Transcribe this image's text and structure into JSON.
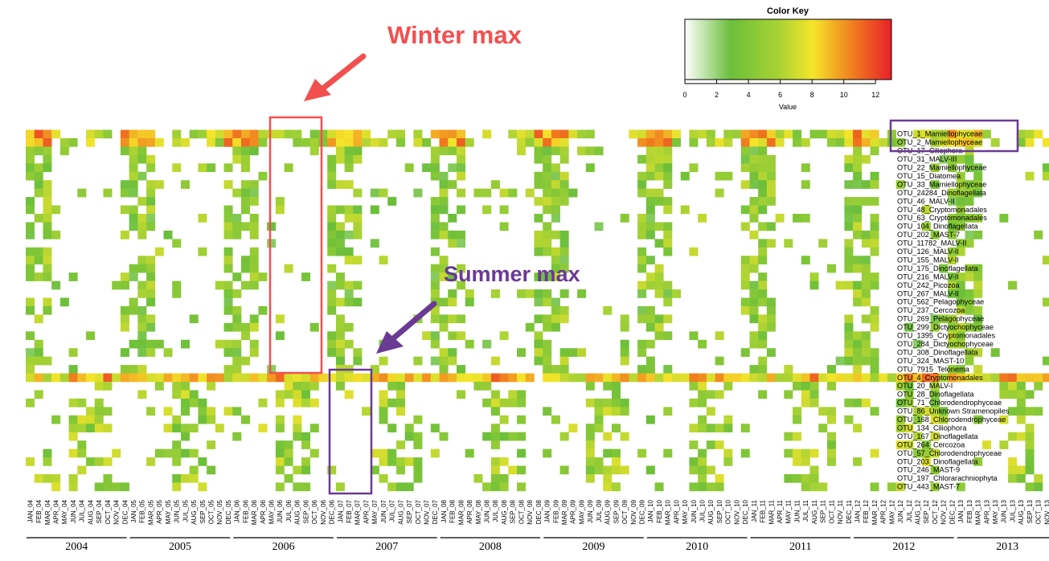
{
  "chart_data": {
    "type": "heatmap",
    "title": "",
    "xlabel": "",
    "ylabel": "",
    "months": [
      "JAN",
      "FEB",
      "MAR",
      "APR",
      "MAY",
      "JUN",
      "JUL",
      "AUG",
      "SEP",
      "OCT",
      "NOV",
      "DEC"
    ],
    "years": [
      "2004",
      "2005",
      "2006",
      "2007",
      "2008",
      "2009",
      "2010",
      "2011",
      "2012",
      "2013"
    ],
    "rows": [
      "OTU_1_Mamiellophyceae",
      "OTU_2_Mamiellophyceae",
      "OTU_17_Ciliophora",
      "OTU_31_MALV-III",
      "OTU_22_Mamiellophyceae",
      "OTU_15_Diatomea",
      "OTU_33_Mamiellophyceae",
      "OTU_24284_Dinoflagellata",
      "OTU_46_MALV-II",
      "OTU_48_Cryptomonadales",
      "OTU_63_Cryptomonadales",
      "OTU_104_Dinoflagellata",
      "OTU_202_MAST-7",
      "OTU_11782_MALV-II",
      "OTU_126_MALV-II",
      "OTU_155_MALV-II",
      "OTU_175_Dinoflagellata",
      "OTU_216_MALV-II",
      "OTU_242_Picozoa",
      "OTU_267_MALV-II",
      "OTU_562_Pelagophyceae",
      "OTU_237_Cercozoa",
      "OTU_269_Pelagophyceae",
      "OTU_299_Dictyochophyceae",
      "OTU_1395_Cryptomonadales",
      "OTU_284_Dictyochophyceae",
      "OTU_308_Dinoflagellata",
      "OTU_324_MAST-10",
      "OTU_7915_Telonema",
      "OTU_4_Cryptomonadales",
      "OTU_20_MALV-I",
      "OTU_28_Dinoflagellata",
      "OTU_71_Chlorodendrophyceae",
      "OTU_86_Unknown Stramenopiles",
      "OTU_168_Chlorodendrophyceae",
      "OTU_134_Ciliophora",
      "OTU_167_Dinoflagellata",
      "OTU_264_Cercozoa",
      "OTU_57_Chlorodendrophyceae",
      "OTU_203_Dinoflagellata",
      "OTU_246_MAST-9",
      "OTU_197_Chlorarachniophyta",
      "OTU_443_MAST-7"
    ],
    "winter_group_rows": 29,
    "color_key": {
      "title": "Color Key",
      "axis_label": "Value",
      "ticks": [
        0,
        2,
        4,
        6,
        8,
        10,
        12
      ],
      "range": [
        0,
        13
      ],
      "colors": [
        "#ffffff",
        "#6bbf3a",
        "#f5e52a",
        "#f07a1e",
        "#e8202a"
      ]
    },
    "annotations": [
      {
        "label": "Winter max",
        "color": "#f24f4f"
      },
      {
        "label": "Summer max",
        "color": "#6a3a94"
      }
    ],
    "highlight_color": "#6a3a94",
    "winter_box_color": "#f24f4f"
  }
}
